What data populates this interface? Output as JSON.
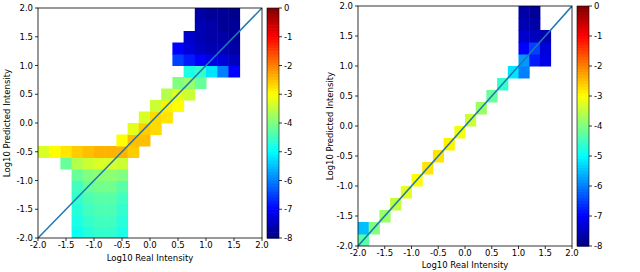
{
  "chart_data": [
    {
      "type": "heatmap",
      "xlabel": "Log10 Real Intensity",
      "ylabel": "Log10 Predicted Intensity",
      "xlim": [
        -2,
        2
      ],
      "ylim": [
        -2,
        2
      ],
      "xticks": [
        {
          "value": -2,
          "label": "-2.0"
        },
        {
          "value": -1.5,
          "label": "-1.5"
        },
        {
          "value": -1,
          "label": "-1.0"
        },
        {
          "value": -0.5,
          "label": "-0.5"
        },
        {
          "value": 0,
          "label": "0.0"
        },
        {
          "value": 0.5,
          "label": "0.5"
        },
        {
          "value": 1,
          "label": "1.0"
        },
        {
          "value": 1.5,
          "label": "1.5"
        },
        {
          "value": 2,
          "label": "2.0"
        }
      ],
      "yticks": [
        {
          "value": -2,
          "label": "-2.0"
        },
        {
          "value": -1.5,
          "label": "-1.5"
        },
        {
          "value": -1,
          "label": "-1.0"
        },
        {
          "value": -0.5,
          "label": "-0.5"
        },
        {
          "value": 0,
          "label": "0.0"
        },
        {
          "value": 0.5,
          "label": "0.5"
        },
        {
          "value": 1,
          "label": "1.0"
        },
        {
          "value": 1.5,
          "label": "1.5"
        },
        {
          "value": 2,
          "label": "2.0"
        }
      ],
      "x_bins": [
        -2,
        -1.8,
        -1.6,
        -1.4,
        -1.2,
        -1,
        -0.8,
        -0.6,
        -0.4,
        -0.2,
        0,
        0.2,
        0.4,
        0.6,
        0.8,
        1,
        1.2,
        1.4,
        1.6,
        1.8,
        2
      ],
      "y_bins": [
        -2,
        -1.8,
        -1.6,
        -1.4,
        -1.2,
        -1,
        -0.8,
        -0.6,
        -0.4,
        -0.2,
        0,
        0.2,
        0.4,
        0.6,
        0.8,
        1,
        1.2,
        1.4,
        1.6,
        1.8,
        2
      ],
      "values": [
        [
          null,
          null,
          null,
          -4.9,
          -4.7,
          -4.6,
          -4.6,
          -4.8,
          null,
          null,
          null,
          null,
          null,
          null,
          null,
          null,
          null,
          null,
          null,
          null
        ],
        [
          null,
          null,
          null,
          -4.8,
          -4.6,
          -4.5,
          -4.5,
          -4.7,
          null,
          null,
          null,
          null,
          null,
          null,
          null,
          null,
          null,
          null,
          null,
          null
        ],
        [
          null,
          null,
          null,
          -4.7,
          -4.5,
          -4.4,
          -4.4,
          -4.6,
          null,
          null,
          null,
          null,
          null,
          null,
          null,
          null,
          null,
          null,
          null,
          null
        ],
        [
          null,
          null,
          null,
          -4.6,
          -4.4,
          -4.3,
          -4.3,
          -4.5,
          null,
          null,
          null,
          null,
          null,
          null,
          null,
          null,
          null,
          null,
          null,
          null
        ],
        [
          null,
          null,
          null,
          -4.5,
          -4.2,
          -4.1,
          -4.1,
          -4.3,
          null,
          null,
          null,
          null,
          null,
          null,
          null,
          null,
          null,
          null,
          null,
          null
        ],
        [
          null,
          null,
          null,
          -4.2,
          -4.0,
          -3.9,
          -3.9,
          -4.0,
          null,
          null,
          null,
          null,
          null,
          null,
          null,
          null,
          null,
          null,
          null,
          null
        ],
        [
          null,
          null,
          -4.2,
          -3.6,
          -3.4,
          -3.3,
          -3.3,
          -3.4,
          null,
          null,
          null,
          null,
          null,
          null,
          null,
          null,
          null,
          null,
          null,
          null
        ],
        [
          -3.3,
          -3.0,
          -2.8,
          -2.6,
          -2.5,
          -2.4,
          -2.4,
          -2.4,
          -2.6,
          null,
          null,
          null,
          null,
          null,
          null,
          null,
          null,
          null,
          null,
          null
        ],
        [
          null,
          null,
          null,
          null,
          null,
          null,
          null,
          -3.0,
          -2.5,
          -2.5,
          null,
          null,
          null,
          null,
          null,
          null,
          null,
          null,
          null,
          null
        ],
        [
          null,
          null,
          null,
          null,
          null,
          null,
          null,
          null,
          -3.2,
          -2.6,
          -2.7,
          null,
          null,
          null,
          null,
          null,
          null,
          null,
          null,
          null
        ],
        [
          null,
          null,
          null,
          null,
          null,
          null,
          null,
          null,
          null,
          -3.3,
          -2.7,
          -2.8,
          null,
          null,
          null,
          null,
          null,
          null,
          null,
          null
        ],
        [
          null,
          null,
          null,
          null,
          null,
          null,
          null,
          null,
          null,
          null,
          -3.4,
          -2.9,
          -3.0,
          null,
          null,
          null,
          null,
          null,
          null,
          null
        ],
        [
          null,
          null,
          null,
          null,
          null,
          null,
          null,
          null,
          null,
          null,
          null,
          -3.6,
          -3.2,
          -3.4,
          null,
          null,
          null,
          null,
          null,
          null
        ],
        [
          null,
          null,
          null,
          null,
          null,
          null,
          null,
          null,
          null,
          null,
          null,
          null,
          -4.0,
          -3.8,
          -4.2,
          null,
          null,
          null,
          null,
          null
        ],
        [
          null,
          null,
          null,
          null,
          null,
          null,
          null,
          null,
          null,
          null,
          null,
          null,
          null,
          -4.8,
          -4.6,
          -5.2,
          -6.0,
          -7.0,
          null,
          null
        ],
        [
          null,
          null,
          null,
          null,
          null,
          null,
          null,
          null,
          null,
          null,
          null,
          null,
          -6.5,
          -6.8,
          -7.0,
          -7.2,
          -7.3,
          -7.5,
          null,
          null
        ],
        [
          null,
          null,
          null,
          null,
          null,
          null,
          null,
          null,
          null,
          null,
          null,
          null,
          -7.0,
          -7.3,
          -7.5,
          -7.6,
          -7.6,
          -7.7,
          null,
          null
        ],
        [
          null,
          null,
          null,
          null,
          null,
          null,
          null,
          null,
          null,
          null,
          null,
          null,
          null,
          -7.4,
          -7.6,
          -7.7,
          -7.7,
          -7.8,
          null,
          null
        ],
        [
          null,
          null,
          null,
          null,
          null,
          null,
          null,
          null,
          null,
          null,
          null,
          null,
          null,
          null,
          -7.6,
          -7.7,
          -7.8,
          -7.8,
          null,
          null
        ],
        [
          null,
          null,
          null,
          null,
          null,
          null,
          null,
          null,
          null,
          null,
          null,
          null,
          null,
          null,
          -7.7,
          -7.8,
          -7.8,
          -7.9,
          null,
          null
        ]
      ],
      "colorbar_range": [
        -8,
        0
      ],
      "colorbar_ticks": [
        0,
        -1,
        -2,
        -3,
        -4,
        -5,
        -6,
        -7,
        -8
      ],
      "series": [
        {
          "type": "line",
          "x": [
            -2,
            2
          ],
          "values": [
            -2,
            2
          ],
          "color": "#1f77b4"
        }
      ]
    },
    {
      "type": "heatmap",
      "xlabel": "Log10 Real Intensity",
      "ylabel": "Log10 Predicted Intensity",
      "xlim": [
        -2,
        2
      ],
      "ylim": [
        -2,
        2
      ],
      "xticks": [
        {
          "value": -2,
          "label": "-2.0"
        },
        {
          "value": -1.5,
          "label": "-1.5"
        },
        {
          "value": -1,
          "label": "-1.0"
        },
        {
          "value": -0.5,
          "label": "-0.5"
        },
        {
          "value": 0,
          "label": "0.0"
        },
        {
          "value": 0.5,
          "label": "0.5"
        },
        {
          "value": 1,
          "label": "1.0"
        },
        {
          "value": 1.5,
          "label": "1.5"
        },
        {
          "value": 2,
          "label": "2.0"
        }
      ],
      "yticks": [
        {
          "value": -2,
          "label": "-2.0"
        },
        {
          "value": -1.5,
          "label": "-1.5"
        },
        {
          "value": -1,
          "label": "-1.0"
        },
        {
          "value": -0.5,
          "label": "-0.5"
        },
        {
          "value": 0,
          "label": "0.0"
        },
        {
          "value": 0.5,
          "label": "0.5"
        },
        {
          "value": 1,
          "label": "1.0"
        },
        {
          "value": 1.5,
          "label": "1.5"
        },
        {
          "value": 2,
          "label": "2.0"
        }
      ],
      "x_bins": [
        -2,
        -1.8,
        -1.6,
        -1.4,
        -1.2,
        -1,
        -0.8,
        -0.6,
        -0.4,
        -0.2,
        0,
        0.2,
        0.4,
        0.6,
        0.8,
        1,
        1.2,
        1.4,
        1.6,
        1.8,
        2
      ],
      "y_bins": [
        -2,
        -1.8,
        -1.6,
        -1.4,
        -1.2,
        -1,
        -0.8,
        -0.6,
        -0.4,
        -0.2,
        0,
        0.2,
        0.4,
        0.6,
        0.8,
        1,
        1.2,
        1.4,
        1.6,
        1.8,
        2
      ],
      "values": [
        [
          -4.3,
          null,
          null,
          null,
          null,
          null,
          null,
          null,
          null,
          null,
          null,
          null,
          null,
          null,
          null,
          null,
          null,
          null,
          null,
          null
        ],
        [
          -5.5,
          -4.0,
          null,
          null,
          null,
          null,
          null,
          null,
          null,
          null,
          null,
          null,
          null,
          null,
          null,
          null,
          null,
          null,
          null,
          null
        ],
        [
          null,
          null,
          -3.8,
          null,
          null,
          null,
          null,
          null,
          null,
          null,
          null,
          null,
          null,
          null,
          null,
          null,
          null,
          null,
          null,
          null
        ],
        [
          null,
          null,
          null,
          -3.5,
          null,
          null,
          null,
          null,
          null,
          null,
          null,
          null,
          null,
          null,
          null,
          null,
          null,
          null,
          null,
          null
        ],
        [
          null,
          null,
          null,
          null,
          -3.2,
          null,
          null,
          null,
          null,
          null,
          null,
          null,
          null,
          null,
          null,
          null,
          null,
          null,
          null,
          null
        ],
        [
          null,
          null,
          null,
          null,
          null,
          -3.0,
          null,
          null,
          null,
          null,
          null,
          null,
          null,
          null,
          null,
          null,
          null,
          null,
          null,
          null
        ],
        [
          null,
          null,
          null,
          null,
          null,
          null,
          -2.8,
          null,
          null,
          null,
          null,
          null,
          null,
          null,
          null,
          null,
          null,
          null,
          null,
          null
        ],
        [
          null,
          null,
          null,
          null,
          null,
          null,
          null,
          -2.8,
          null,
          null,
          null,
          null,
          null,
          null,
          null,
          null,
          null,
          null,
          null,
          null
        ],
        [
          null,
          null,
          null,
          null,
          null,
          null,
          null,
          null,
          -2.9,
          null,
          null,
          null,
          null,
          null,
          null,
          null,
          null,
          null,
          null,
          null
        ],
        [
          null,
          null,
          null,
          null,
          null,
          null,
          null,
          null,
          null,
          -3.1,
          null,
          null,
          null,
          null,
          null,
          null,
          null,
          null,
          null,
          null
        ],
        [
          null,
          null,
          null,
          null,
          null,
          null,
          null,
          null,
          null,
          null,
          -3.4,
          null,
          null,
          null,
          null,
          null,
          null,
          null,
          null,
          null
        ],
        [
          null,
          null,
          null,
          null,
          null,
          null,
          null,
          null,
          null,
          null,
          null,
          -3.8,
          null,
          null,
          null,
          null,
          null,
          null,
          null,
          null
        ],
        [
          null,
          null,
          null,
          null,
          null,
          null,
          null,
          null,
          null,
          null,
          null,
          null,
          -4.2,
          null,
          null,
          null,
          null,
          null,
          null,
          null
        ],
        [
          null,
          null,
          null,
          null,
          null,
          null,
          null,
          null,
          null,
          null,
          null,
          null,
          null,
          -4.6,
          null,
          null,
          null,
          null,
          null,
          null
        ],
        [
          null,
          null,
          null,
          null,
          null,
          null,
          null,
          null,
          null,
          null,
          null,
          null,
          null,
          null,
          -5.2,
          -6.0,
          null,
          null,
          null,
          null
        ],
        [
          null,
          null,
          null,
          null,
          null,
          null,
          null,
          null,
          null,
          null,
          null,
          null,
          null,
          null,
          null,
          -5.8,
          -6.8,
          -7.2,
          null,
          null
        ],
        [
          null,
          null,
          null,
          null,
          null,
          null,
          null,
          null,
          null,
          null,
          null,
          null,
          null,
          null,
          null,
          -7.0,
          -6.5,
          -7.3,
          null,
          null
        ],
        [
          null,
          null,
          null,
          null,
          null,
          null,
          null,
          null,
          null,
          null,
          null,
          null,
          null,
          null,
          null,
          -7.4,
          -7.5,
          -7.6,
          null,
          null
        ],
        [
          null,
          null,
          null,
          null,
          null,
          null,
          null,
          null,
          null,
          null,
          null,
          null,
          null,
          null,
          null,
          -7.6,
          -7.7,
          null,
          null,
          null
        ],
        [
          null,
          null,
          null,
          null,
          null,
          null,
          null,
          null,
          null,
          null,
          null,
          null,
          null,
          null,
          null,
          -7.7,
          -7.8,
          null,
          null,
          null
        ]
      ],
      "colorbar_range": [
        -8,
        0
      ],
      "colorbar_ticks": [
        0,
        -1,
        -2,
        -3,
        -4,
        -5,
        -6,
        -7,
        -8
      ],
      "series": [
        {
          "type": "line",
          "x": [
            -2,
            2
          ],
          "values": [
            -2,
            2
          ],
          "color": "#1f77b4"
        }
      ]
    }
  ]
}
